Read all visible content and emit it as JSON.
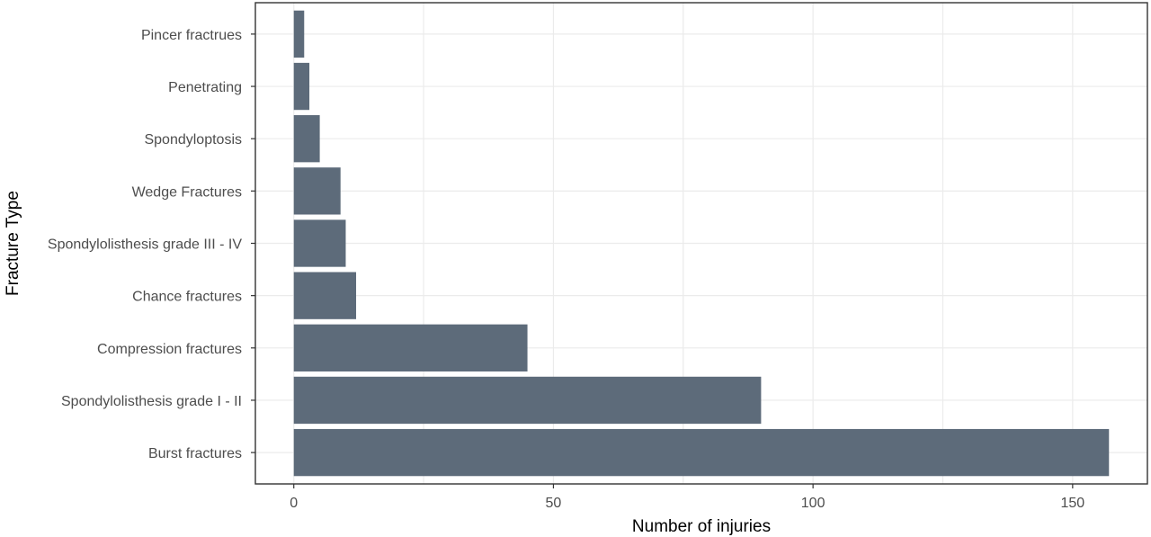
{
  "chart_data": {
    "type": "bar",
    "orientation": "horizontal",
    "title": "",
    "xlabel": "Number of injuries",
    "ylabel": "Fracture Type",
    "categories": [
      "Burst fractures",
      "Spondylolisthesis grade I - II",
      "Compression fractures",
      "Chance fractures",
      "Spondylolisthesis grade III - IV",
      "Wedge Fractures",
      "Spondyloptosis",
      "Penetrating",
      "Pincer fractrues"
    ],
    "values": [
      157,
      90,
      45,
      12,
      10,
      9,
      5,
      3,
      2
    ],
    "xlim": [
      -7.4,
      164.4
    ],
    "xticks": [
      0,
      50,
      100,
      150
    ],
    "bar_color": "#5d6b7a",
    "grid": true,
    "legend": "none"
  }
}
